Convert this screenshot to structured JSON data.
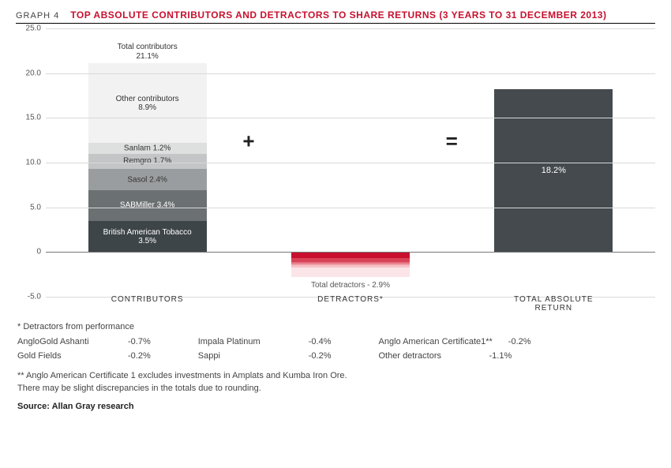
{
  "header": {
    "graph_num": "GRAPH 4",
    "title": "TOP ABSOLUTE CONTRIBUTORS AND DETRACTORS TO SHARE RETURNS (3 YEARS TO 31 DECEMBER 2013)"
  },
  "chart": {
    "type": "stacked-bar-waterfall",
    "ylim_min": -5.0,
    "ylim_max": 25.0,
    "ytick_step": 5.0,
    "yticks": [
      "25.0",
      "20.0",
      "15.0",
      "10.0",
      "5.0",
      "0",
      "-5.0"
    ],
    "background_color": "#ffffff",
    "grid_color": "#d9d9d9",
    "zero_line_color": "#777777",
    "operator_plus": "+",
    "operator_equals": "=",
    "x_categories": [
      "CONTRIBUTORS",
      "DETRACTORS*",
      "TOTAL ABSOLUTE RETURN"
    ],
    "contributors": {
      "total_value": 21.1,
      "total_label": "Total contributors",
      "total_pct": "21.1%",
      "segments": [
        {
          "name": "British American Tobacco",
          "value": 3.5,
          "pct": "3.5%",
          "color": "#3e4548",
          "text_color": "#ffffff"
        },
        {
          "name": "SABMiller",
          "value": 3.4,
          "pct": "3.4%",
          "color": "#6b7072",
          "text_color": "#ffffff"
        },
        {
          "name": "Sasol",
          "value": 2.4,
          "pct": "2.4%",
          "color": "#9a9d9f",
          "text_color": "#333333"
        },
        {
          "name": "Remgro",
          "value": 1.7,
          "pct": "1.7%",
          "color": "#c4c5c6",
          "text_color": "#333333"
        },
        {
          "name": "Sanlam",
          "value": 1.2,
          "pct": "1.2%",
          "color": "#dedfdf",
          "text_color": "#333333"
        },
        {
          "name": "Other contributors",
          "value": 8.9,
          "pct": "8.9%",
          "color": "#f2f2f2",
          "text_color": "#333333"
        }
      ]
    },
    "detractors": {
      "total_value": -2.9,
      "total_label": "Total detractors",
      "total_pct": "- 2.9%",
      "segments": [
        {
          "value": -0.7,
          "color": "#c8102e"
        },
        {
          "value": -0.4,
          "color": "#d84257"
        },
        {
          "value": -0.2,
          "color": "#e56f7f"
        },
        {
          "value": -0.2,
          "color": "#ef9aa5"
        },
        {
          "value": -0.2,
          "color": "#f6c3c9"
        },
        {
          "value": -1.1,
          "color": "#fbe5e8"
        }
      ]
    },
    "total_return": {
      "value": 18.2,
      "pct": "18.2%",
      "color": "#444a4d"
    }
  },
  "footnotes": {
    "det_title": "* Detractors from performance",
    "det_rows": [
      [
        {
          "name": "AngloGold Ashanti",
          "pct": "-0.7%"
        },
        {
          "name": "Impala Platinum",
          "pct": "-0.4%"
        },
        {
          "name": "Anglo American Certificate1**",
          "pct": "-0.2%"
        }
      ],
      [
        {
          "name": "Gold Fields",
          "pct": "-0.2%"
        },
        {
          "name": "Sappi",
          "pct": "-0.2%"
        },
        {
          "name": "Other detractors",
          "pct": "-1.1%"
        }
      ]
    ],
    "note1": "** Anglo American Certificate 1 excludes investments in Amplats and Kumba Iron Ore.",
    "note2": "There may be slight discrepancies in the totals due to rounding.",
    "source": "Source: Allan Gray research"
  }
}
